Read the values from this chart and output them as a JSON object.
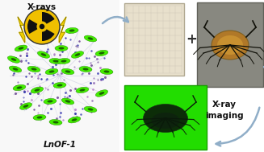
{
  "bg_color": "#ffffff",
  "xrays_text": "X-rays",
  "lnof_text": "LnOF-1",
  "xray_imaging_text": "X-ray\nimaging",
  "radiation_bg_color": "#f0c000",
  "lightning_color": "#f0d000",
  "crystal_green": "#44ee00",
  "crystal_dark": "#104000",
  "crystal_dot_colors": [
    "#6060c0",
    "#8060a0",
    "#4040b0",
    "#a080c0",
    "#c090d0"
  ],
  "film_bg": "#e8e0cc",
  "film_border": "#b0a890",
  "film_grid": "#c8c0b0",
  "crab_bg": "#888880",
  "crab_body_color": "#c09030",
  "crab_dark": "#202010",
  "green_bg": "#22dd00",
  "xray_dark": "#0a1a0a",
  "arrow_color": "#90aec8",
  "plus_color": "#303030",
  "text_color": "#101010",
  "left_bg": "#f8f8f8",
  "crystal_line_color": "#c8c8e0"
}
